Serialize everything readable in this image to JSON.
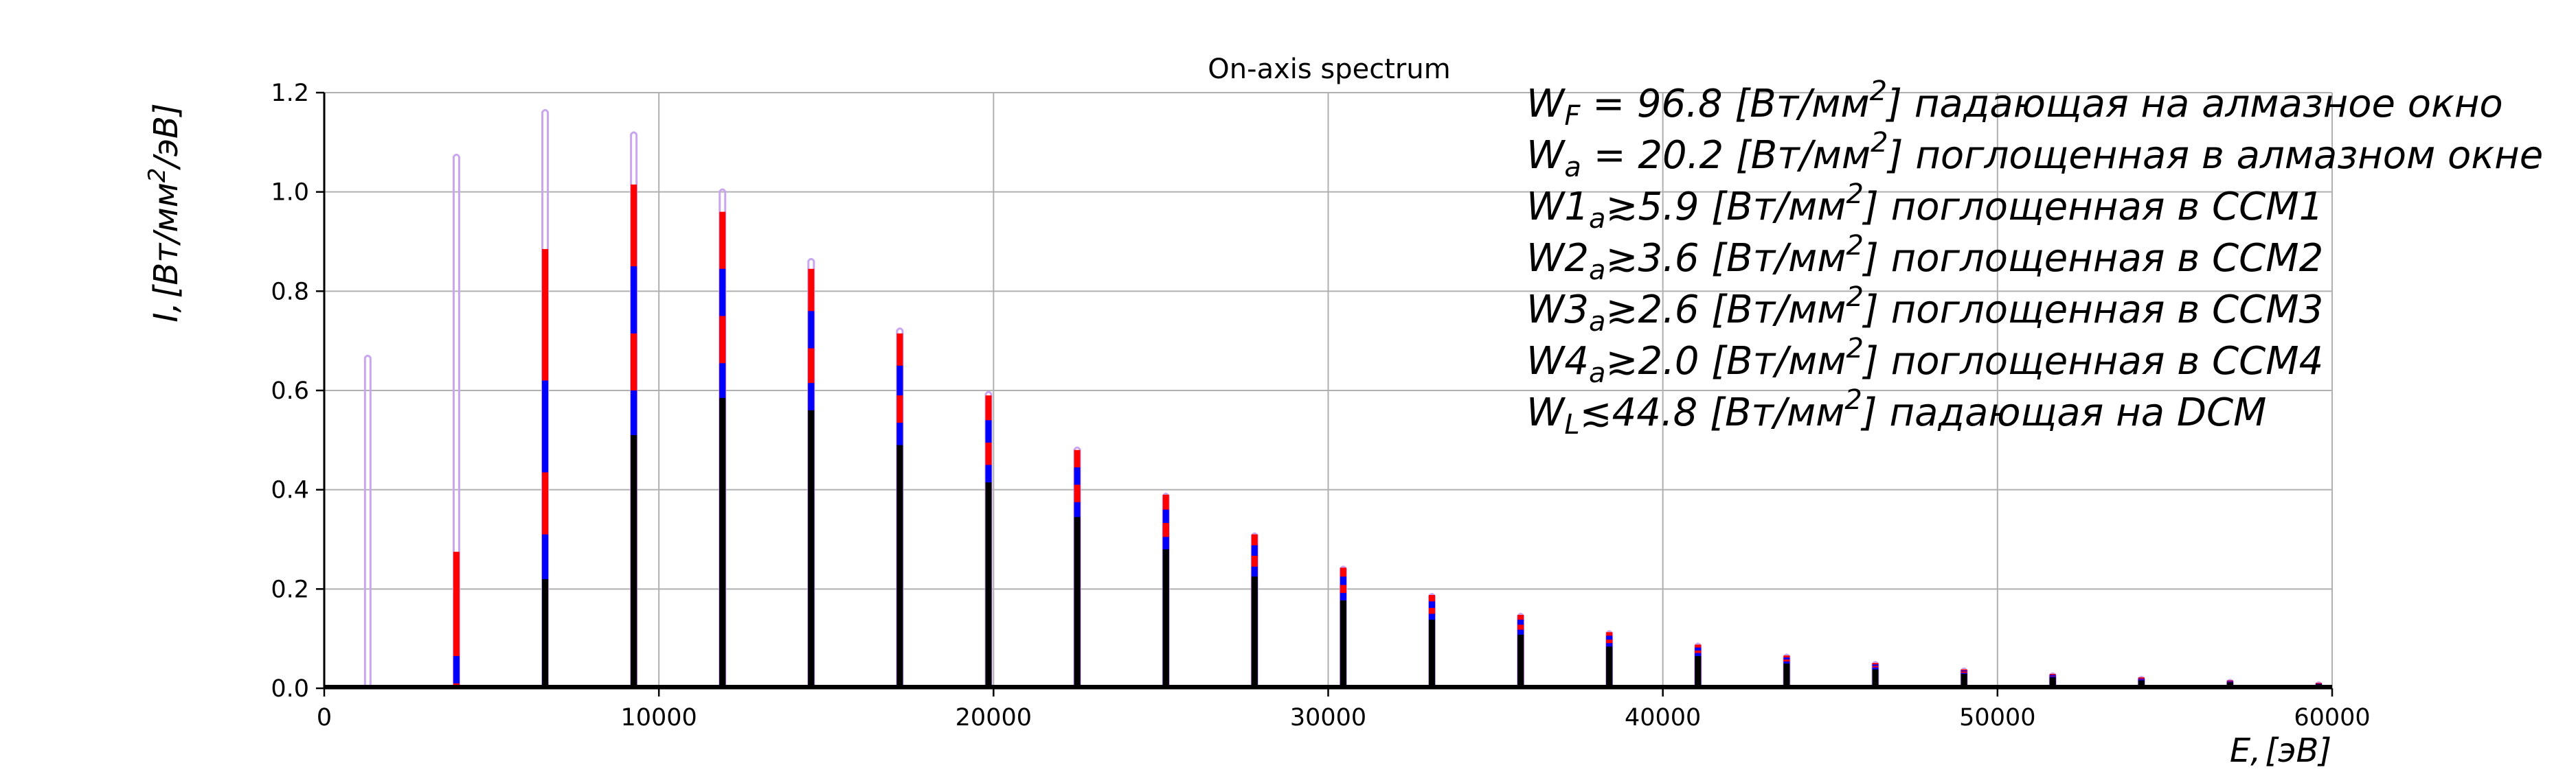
{
  "chart_data": {
    "type": "line",
    "title": "On-axis spectrum",
    "xlabel": {
      "main": "E,",
      "unit": "[эВ]"
    },
    "ylabel": {
      "main": "I,",
      "unit_pre": "[Вт/мм",
      "unit_sup": "2",
      "unit_post": "/эВ]"
    },
    "xlim": [
      0,
      60000
    ],
    "ylim": [
      0,
      1.2
    ],
    "xticks": [
      0,
      10000,
      20000,
      30000,
      40000,
      50000,
      60000
    ],
    "xtick_labels": [
      "0",
      "10000",
      "20000",
      "30000",
      "40000",
      "50000",
      "60000"
    ],
    "yticks": [
      0.0,
      0.2,
      0.4,
      0.6,
      0.8,
      1.0,
      1.2
    ],
    "ytick_labels": [
      "0.0",
      "0.2",
      "0.4",
      "0.6",
      "0.8",
      "1.0",
      "1.2"
    ],
    "grid": true,
    "x": [
      1300,
      3950,
      6600,
      9250,
      11900,
      14550,
      17200,
      19850,
      22500,
      25150,
      27800,
      30450,
      33100,
      35750,
      38400,
      41050,
      43700,
      46350,
      49000,
      51650,
      54300,
      56950,
      59600
    ],
    "series": [
      {
        "color": "#c9a6ef",
        "values": [
          0.67,
          1.075,
          1.165,
          1.12,
          1.005,
          0.865,
          0.725,
          0.597,
          0.485,
          0.392,
          0.312,
          0.245,
          0.19,
          0.15,
          0.115,
          0.09,
          0.068,
          0.053,
          0.04,
          0.03,
          0.023,
          0.017,
          0.012
        ]
      },
      {
        "color": "#ff0000",
        "values": [
          0.0,
          0.275,
          0.885,
          1.015,
          0.96,
          0.845,
          0.715,
          0.59,
          0.48,
          0.39,
          0.31,
          0.243,
          0.188,
          0.148,
          0.113,
          0.088,
          0.066,
          0.051,
          0.038,
          0.029,
          0.022,
          0.016,
          0.011
        ]
      },
      {
        "color": "#0000ff",
        "values": [
          0.0,
          0.065,
          0.62,
          0.85,
          0.845,
          0.76,
          0.65,
          0.54,
          0.445,
          0.36,
          0.288,
          0.225,
          0.175,
          0.138,
          0.106,
          0.082,
          0.062,
          0.048,
          0.036,
          0.027,
          0.02,
          0.015,
          0.01
        ]
      },
      {
        "color": "#ff0000",
        "values": [
          0.0,
          0.01,
          0.435,
          0.715,
          0.75,
          0.685,
          0.59,
          0.495,
          0.41,
          0.333,
          0.267,
          0.208,
          0.162,
          0.128,
          0.098,
          0.076,
          0.058,
          0.045,
          0.034,
          0.025,
          0.019,
          0.014,
          0.01
        ]
      },
      {
        "color": "#0000ff",
        "values": [
          0.0,
          0.0,
          0.31,
          0.6,
          0.655,
          0.615,
          0.535,
          0.45,
          0.375,
          0.305,
          0.245,
          0.192,
          0.15,
          0.118,
          0.091,
          0.071,
          0.054,
          0.042,
          0.031,
          0.024,
          0.018,
          0.013,
          0.009
        ]
      },
      {
        "color": "#000000",
        "values": [
          0.0,
          0.0,
          0.22,
          0.51,
          0.585,
          0.56,
          0.49,
          0.415,
          0.345,
          0.28,
          0.225,
          0.177,
          0.138,
          0.108,
          0.084,
          0.065,
          0.05,
          0.038,
          0.029,
          0.022,
          0.016,
          0.012,
          0.008
        ]
      }
    ],
    "annotations": [
      {
        "sym": "W",
        "sub": "F",
        "rel": " = 96.8 ",
        "unit_pre": "[Вт/мм",
        "unit_sup": "2",
        "unit_post": "]",
        "desc": " падающая на алмазное окно"
      },
      {
        "sym": "W",
        "sub": "a",
        "rel": " = 20.2 ",
        "unit_pre": "[Вт/мм",
        "unit_sup": "2",
        "unit_post": "]",
        "desc": " поглощенная в алмазном окне"
      },
      {
        "sym": "W1",
        "sub": "a",
        "rel": "≳5.9 ",
        "unit_pre": "[Вт/мм",
        "unit_sup": "2",
        "unit_post": "]",
        "desc": " поглощенная в CCM1"
      },
      {
        "sym": "W2",
        "sub": "a",
        "rel": "≳3.6 ",
        "unit_pre": "[Вт/мм",
        "unit_sup": "2",
        "unit_post": "]",
        "desc": " поглощенная в CCM2"
      },
      {
        "sym": "W3",
        "sub": "a",
        "rel": "≳2.6 ",
        "unit_pre": "[Вт/мм",
        "unit_sup": "2",
        "unit_post": "]",
        "desc": " поглощенная в CCM3"
      },
      {
        "sym": "W4",
        "sub": "a",
        "rel": "≳2.0 ",
        "unit_pre": "[Вт/мм",
        "unit_sup": "2",
        "unit_post": "]",
        "desc": " поглощенная в CCM4"
      },
      {
        "sym": "W",
        "sub": "L",
        "rel": "≲44.8 ",
        "unit_pre": "[Вт/мм",
        "unit_sup": "2",
        "unit_post": "]",
        "desc": " падающая на DCM"
      }
    ]
  }
}
